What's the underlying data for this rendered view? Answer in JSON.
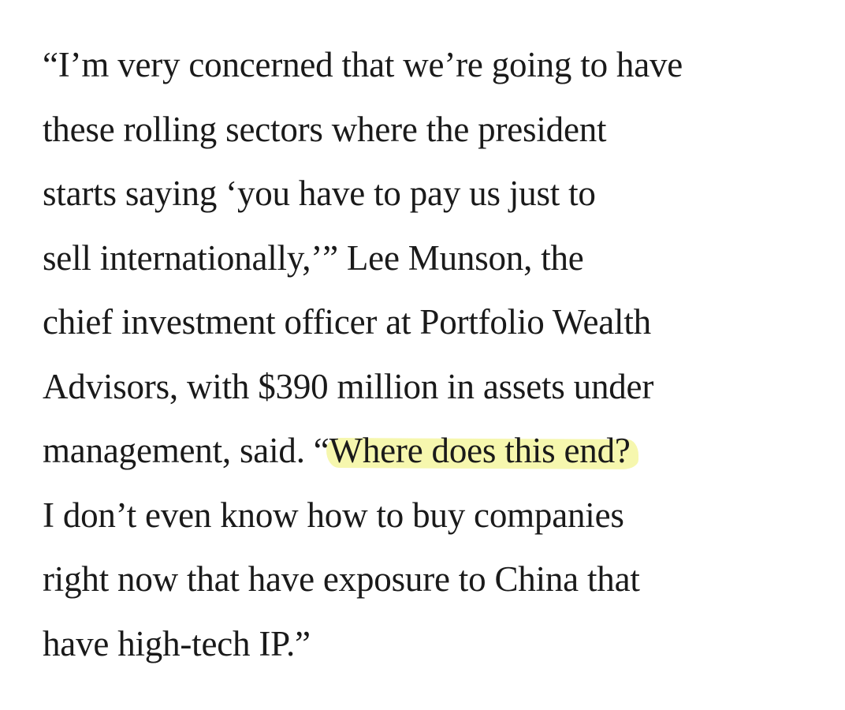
{
  "paragraph": {
    "lines": [
      "“I’m very concerned that we’re going to have",
      "these rolling sectors where the president",
      "starts saying ‘you have to pay us just to",
      "sell internationally,’” Lee Munson, the",
      "chief investment officer at Portfolio Wealth",
      "Advisors, with $390 million in assets under",
      "I don’t even know how to buy companies",
      "right now that have exposure to China that",
      "have high-tech IP.”"
    ],
    "line7_before": "management, said. “",
    "line7_highlight": "Where does this end?"
  },
  "colors": {
    "text": "#1a1a1a",
    "highlight": "#f4f6a0",
    "background": "#ffffff"
  }
}
